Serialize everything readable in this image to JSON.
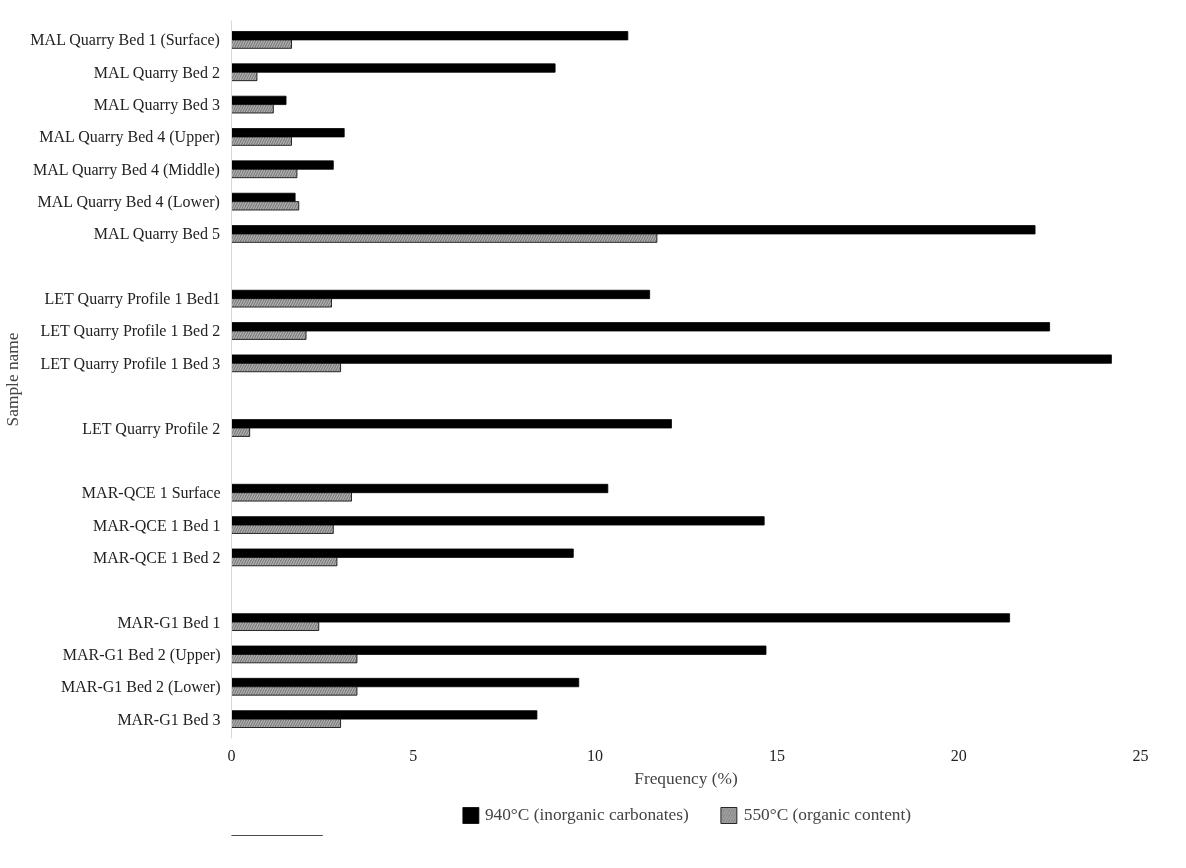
{
  "chart_data": {
    "type": "bar",
    "orientation": "horizontal",
    "xlabel": "Frequency (%)",
    "ylabel": "Sample name",
    "categories": [
      "MAL Quarry Bed 1 (Surface)",
      "MAL Quarry Bed 2",
      "MAL Quarry Bed 3",
      "MAL Quarry Bed 4 (Upper)",
      "MAL Quarry Bed 4 (Middle)",
      "MAL Quarry Bed 4 (Lower)",
      "MAL Quarry Bed 5",
      null,
      "LET Quarry Profile 1 Bed1",
      "LET Quarry Profile 1 Bed 2",
      "LET Quarry Profile 1 Bed 3",
      null,
      "LET Quarry Profile 2",
      null,
      "MAR-QCE 1 Surface",
      "MAR-QCE 1 Bed 1",
      "MAR-QCE 1 Bed 2",
      null,
      "MAR-G1 Bed 1",
      "MAR-G1 Bed 2 (Upper)",
      "MAR-G1 Bed 2 (Lower)",
      "MAR-G1 Bed 3"
    ],
    "series": [
      {
        "name": "940°C (inorganic carbonates)",
        "color": "#000000",
        "values": [
          10.9,
          8.9,
          1.5,
          3.1,
          2.8,
          1.75,
          22.1,
          null,
          11.5,
          22.5,
          24.2,
          null,
          12.1,
          null,
          10.35,
          14.65,
          9.4,
          null,
          21.4,
          14.7,
          9.55,
          8.4
        ]
      },
      {
        "name": "550°C (organic content)",
        "color": "#7f7f7f",
        "values": [
          1.65,
          0.7,
          1.15,
          1.65,
          1.8,
          1.85,
          11.7,
          null,
          2.75,
          2.05,
          3.0,
          null,
          0.5,
          null,
          3.3,
          2.8,
          2.9,
          null,
          2.4,
          3.45,
          3.45,
          3.0
        ]
      }
    ],
    "xlim": [
      0,
      25
    ],
    "xticks": [
      0,
      5,
      10,
      15,
      20,
      25
    ],
    "grid": false,
    "legend": "bottom"
  }
}
